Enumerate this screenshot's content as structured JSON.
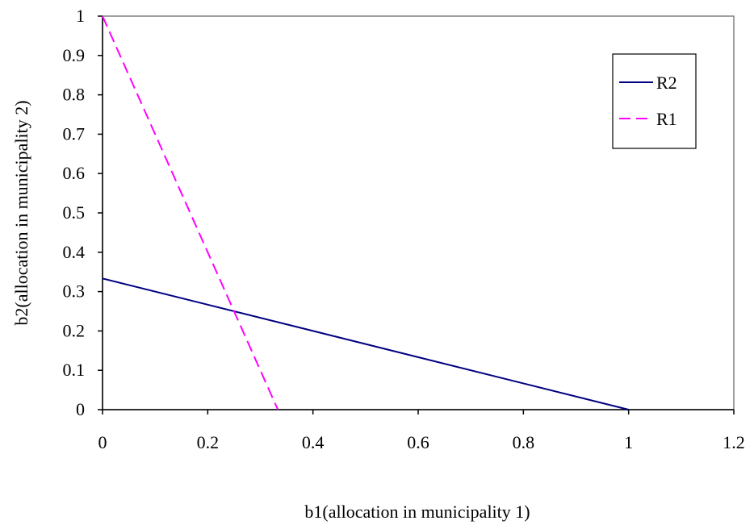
{
  "chart_data": {
    "type": "line",
    "title": "",
    "xlabel": "b1(allocation in municipality 1)",
    "ylabel": "b2(allocation in  municipality 2)",
    "xlim": [
      0,
      1.2
    ],
    "ylim": [
      0,
      1
    ],
    "x_ticks": [
      "0",
      "0.2",
      "0.4",
      "0.6",
      "0.8",
      "1",
      "1.2"
    ],
    "y_ticks": [
      "0",
      "0.1",
      "0.2",
      "0.3",
      "0.4",
      "0.5",
      "0.6",
      "0.7",
      "0.8",
      "0.9",
      "1"
    ],
    "grid": false,
    "legend_position": "top-right",
    "series": [
      {
        "name": "R2",
        "color": "#000080",
        "dash": "solid",
        "x": [
          0,
          1
        ],
        "y": [
          0.3333,
          0
        ]
      },
      {
        "name": "R1",
        "color": "#ff00ff",
        "dash": "dashed",
        "x": [
          0,
          0.3333
        ],
        "y": [
          1,
          0
        ]
      }
    ]
  }
}
